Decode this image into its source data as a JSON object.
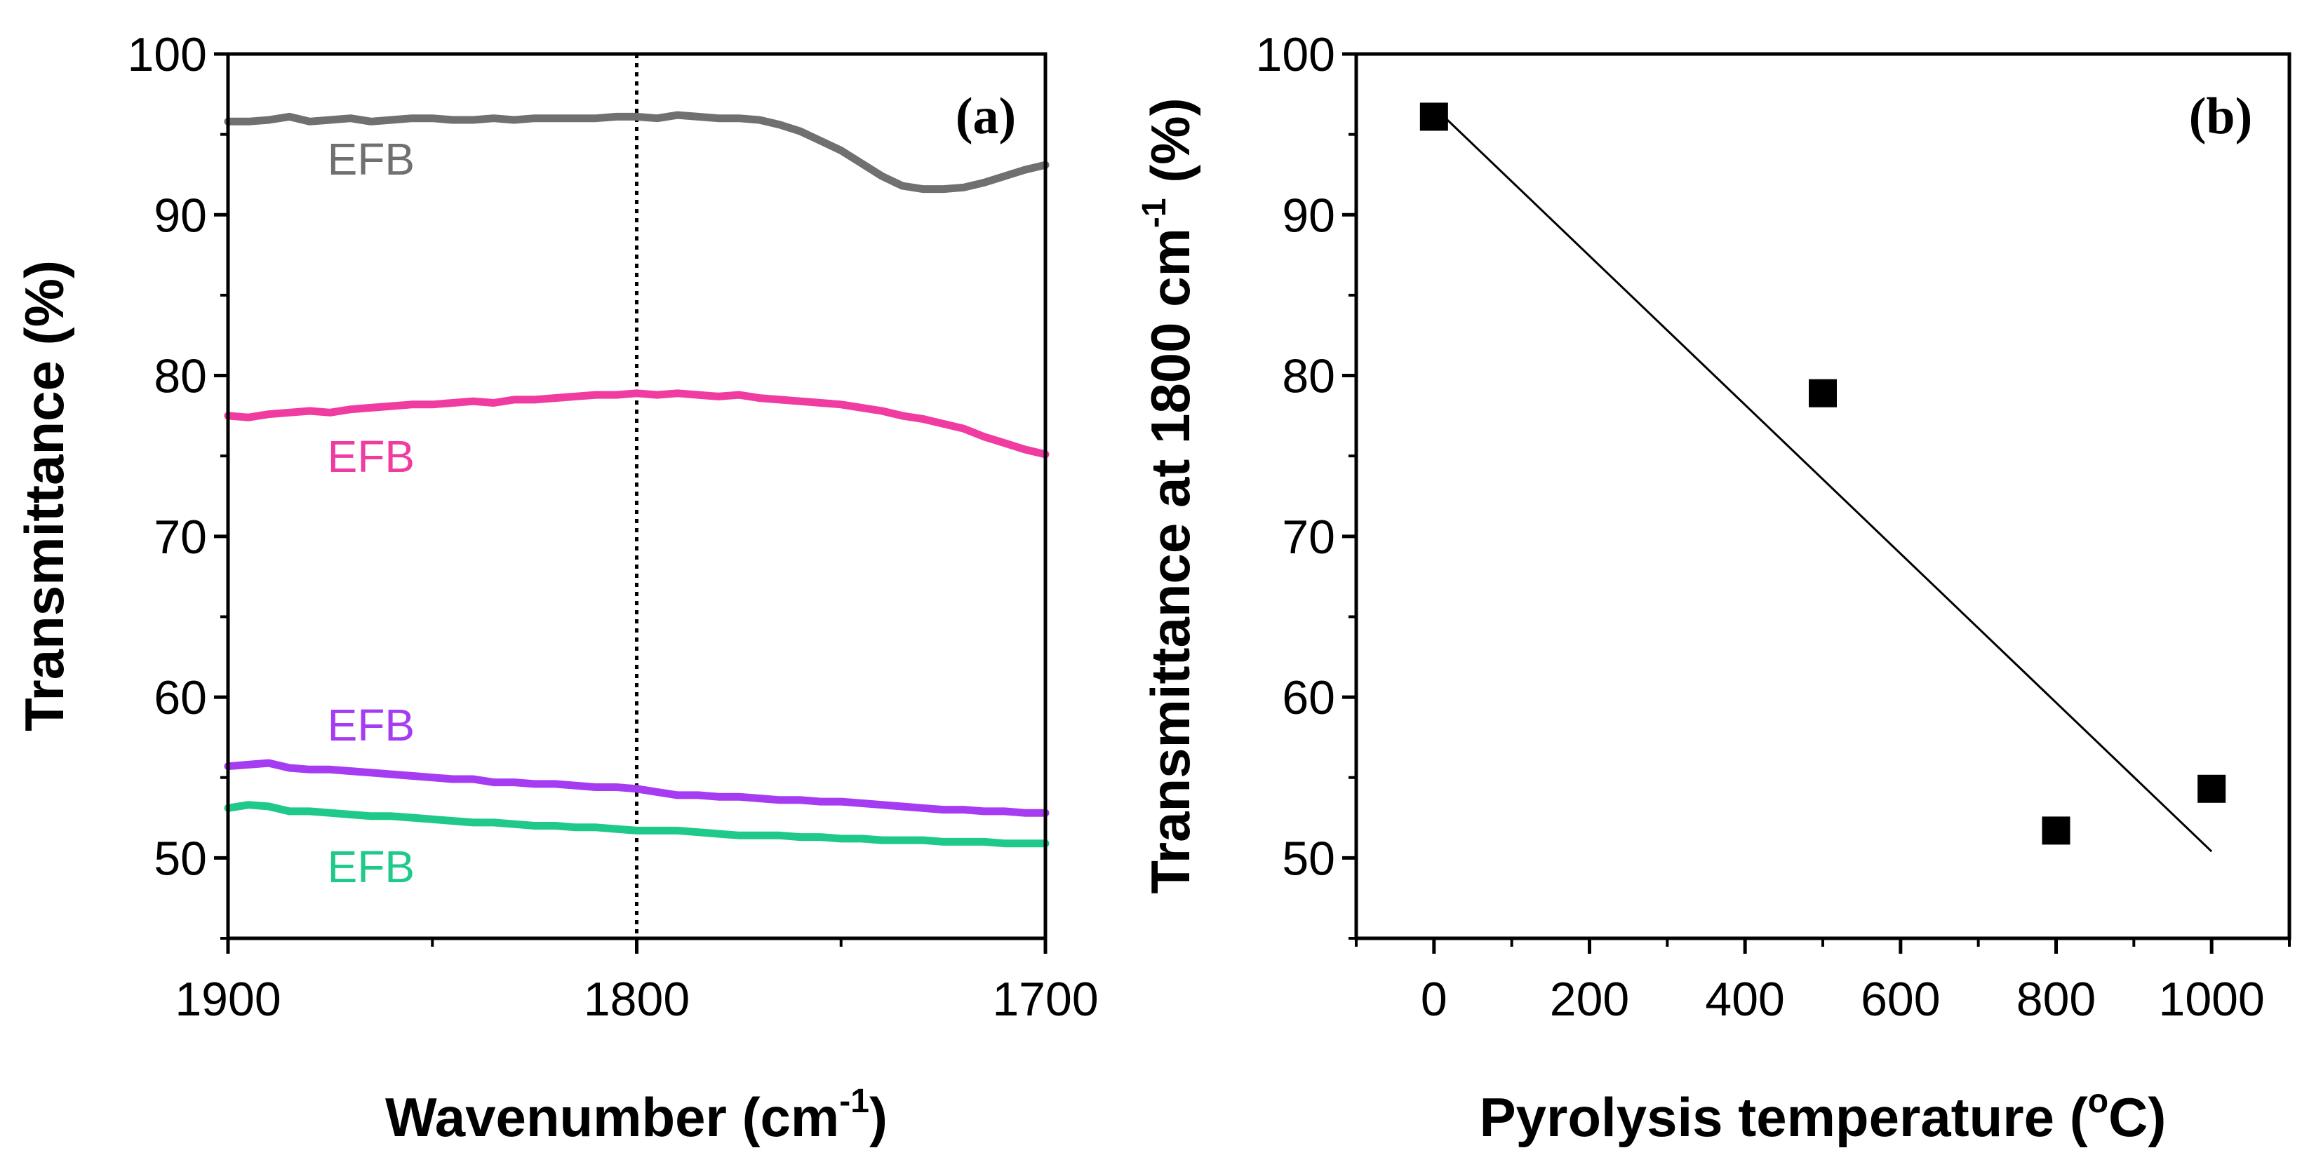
{
  "colors": {
    "axis": "#000000",
    "series_gray": "#707070",
    "series_pink": "#f03ca0",
    "series_purple": "#a63cf2",
    "series_green": "#1ec98a"
  },
  "chart_data": [
    {
      "id": "a",
      "type": "line",
      "panel_label": "(a)",
      "xlabel_main": "Wavenumber (cm",
      "xlabel_sup": "-1",
      "xlabel_end": ")",
      "ylabel": "Transmittance (%)",
      "xlim": [
        1900,
        1700
      ],
      "ylim": [
        45,
        100
      ],
      "x_ticks": [
        1900,
        1800,
        1700
      ],
      "x_tick_labels": [
        "1900",
        "1800",
        "1700"
      ],
      "y_ticks": [
        50,
        60,
        70,
        80,
        90,
        100
      ],
      "y_tick_labels": [
        "50",
        "60",
        "70",
        "80",
        "90",
        "100"
      ],
      "reference_line_x": 1800,
      "series": [
        {
          "name": "EFB",
          "color": "#707070",
          "label_at": [
            1865,
            92.5
          ],
          "x": [
            1900,
            1895,
            1890,
            1885,
            1880,
            1875,
            1870,
            1865,
            1860,
            1855,
            1850,
            1845,
            1840,
            1835,
            1830,
            1825,
            1820,
            1815,
            1810,
            1805,
            1800,
            1795,
            1790,
            1785,
            1780,
            1775,
            1770,
            1765,
            1760,
            1755,
            1750,
            1745,
            1740,
            1735,
            1730,
            1725,
            1720,
            1715,
            1710,
            1705,
            1700
          ],
          "values": [
            95.8,
            95.8,
            95.9,
            96.1,
            95.8,
            95.9,
            96.0,
            95.8,
            95.9,
            96.0,
            96.0,
            95.9,
            95.9,
            96.0,
            95.9,
            96.0,
            96.0,
            96.0,
            96.0,
            96.1,
            96.1,
            96.0,
            96.2,
            96.1,
            96.0,
            96.0,
            95.9,
            95.6,
            95.2,
            94.6,
            94.0,
            93.2,
            92.4,
            91.8,
            91.6,
            91.6,
            91.7,
            92.0,
            92.4,
            92.8,
            93.1
          ]
        },
        {
          "name": "EFB",
          "color": "#f03ca0",
          "label_at": [
            1865,
            74.0
          ],
          "x": [
            1900,
            1895,
            1890,
            1885,
            1880,
            1875,
            1870,
            1865,
            1860,
            1855,
            1850,
            1845,
            1840,
            1835,
            1830,
            1825,
            1820,
            1815,
            1810,
            1805,
            1800,
            1795,
            1790,
            1785,
            1780,
            1775,
            1770,
            1765,
            1760,
            1755,
            1750,
            1745,
            1740,
            1735,
            1730,
            1725,
            1720,
            1715,
            1710,
            1705,
            1700
          ],
          "values": [
            77.5,
            77.4,
            77.6,
            77.7,
            77.8,
            77.7,
            77.9,
            78.0,
            78.1,
            78.2,
            78.2,
            78.3,
            78.4,
            78.3,
            78.5,
            78.5,
            78.6,
            78.7,
            78.8,
            78.8,
            78.9,
            78.8,
            78.9,
            78.8,
            78.7,
            78.8,
            78.6,
            78.5,
            78.4,
            78.3,
            78.2,
            78.0,
            77.8,
            77.5,
            77.3,
            77.0,
            76.7,
            76.2,
            75.8,
            75.4,
            75.1
          ]
        },
        {
          "name": "EFB",
          "color": "#a63cf2",
          "label_at": [
            1865,
            57.3
          ],
          "x": [
            1900,
            1895,
            1890,
            1885,
            1880,
            1875,
            1870,
            1865,
            1860,
            1855,
            1850,
            1845,
            1840,
            1835,
            1830,
            1825,
            1820,
            1815,
            1810,
            1805,
            1800,
            1795,
            1790,
            1785,
            1780,
            1775,
            1770,
            1765,
            1760,
            1755,
            1750,
            1745,
            1740,
            1735,
            1730,
            1725,
            1720,
            1715,
            1710,
            1705,
            1700
          ],
          "values": [
            55.7,
            55.8,
            55.9,
            55.6,
            55.5,
            55.5,
            55.4,
            55.3,
            55.2,
            55.1,
            55.0,
            54.9,
            54.9,
            54.7,
            54.7,
            54.6,
            54.6,
            54.5,
            54.4,
            54.4,
            54.3,
            54.1,
            53.9,
            53.9,
            53.8,
            53.8,
            53.7,
            53.6,
            53.6,
            53.5,
            53.5,
            53.4,
            53.3,
            53.2,
            53.1,
            53.0,
            53.0,
            52.9,
            52.9,
            52.8,
            52.8
          ]
        },
        {
          "name": "EFB",
          "color": "#1ec98a",
          "label_at": [
            1865,
            48.5
          ],
          "x": [
            1900,
            1895,
            1890,
            1885,
            1880,
            1875,
            1870,
            1865,
            1860,
            1855,
            1850,
            1845,
            1840,
            1835,
            1830,
            1825,
            1820,
            1815,
            1810,
            1805,
            1800,
            1795,
            1790,
            1785,
            1780,
            1775,
            1770,
            1765,
            1760,
            1755,
            1750,
            1745,
            1740,
            1735,
            1730,
            1725,
            1720,
            1715,
            1710,
            1705,
            1700
          ],
          "values": [
            53.1,
            53.3,
            53.2,
            52.9,
            52.9,
            52.8,
            52.7,
            52.6,
            52.6,
            52.5,
            52.4,
            52.3,
            52.2,
            52.2,
            52.1,
            52.0,
            52.0,
            51.9,
            51.9,
            51.8,
            51.7,
            51.7,
            51.7,
            51.6,
            51.5,
            51.4,
            51.4,
            51.4,
            51.3,
            51.3,
            51.2,
            51.2,
            51.1,
            51.1,
            51.1,
            51.0,
            51.0,
            51.0,
            50.9,
            50.9,
            50.9
          ]
        }
      ]
    },
    {
      "id": "b",
      "type": "scatter",
      "panel_label": "(b)",
      "xlabel_main": "Pyrolysis temperature (",
      "xlabel_sup": "o",
      "xlabel_end": "C)",
      "ylabel_main": "Transmittance at 1800 cm",
      "ylabel_sup": "-1",
      "ylabel_end": " (%)",
      "xlim": [
        -100,
        1100
      ],
      "ylim": [
        45,
        100
      ],
      "x_ticks": [
        0,
        200,
        400,
        600,
        800,
        1000
      ],
      "x_tick_labels": [
        "0",
        "200",
        "400",
        "600",
        "800",
        "1000"
      ],
      "y_ticks": [
        50,
        60,
        70,
        80,
        90,
        100
      ],
      "y_tick_labels": [
        "50",
        "60",
        "70",
        "80",
        "90",
        "100"
      ],
      "points": {
        "x": [
          0,
          500,
          800,
          1000
        ],
        "y": [
          96.1,
          78.9,
          51.7,
          54.3
        ]
      },
      "fit_line": {
        "x": [
          0,
          1000
        ],
        "y": [
          96.7,
          50.4
        ]
      },
      "marker": "square",
      "color": "#000000"
    }
  ]
}
